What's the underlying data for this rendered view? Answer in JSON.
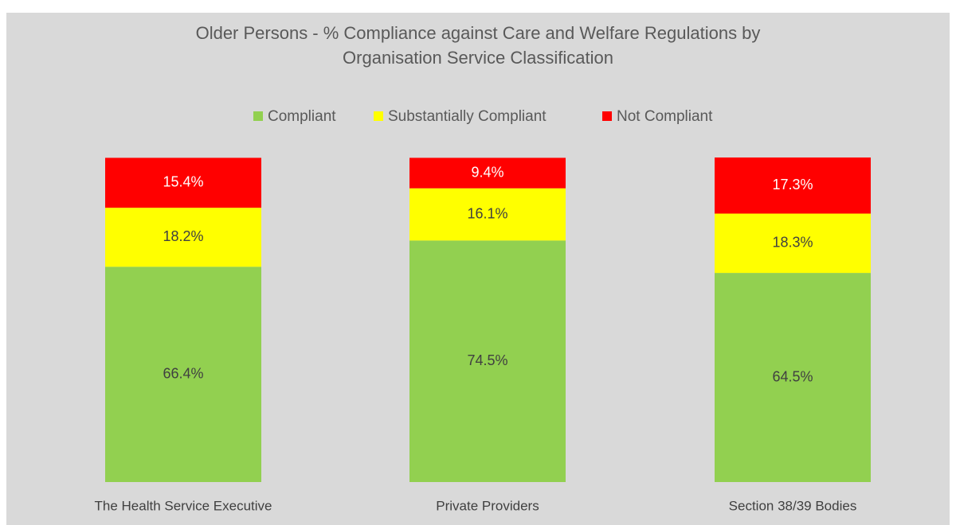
{
  "chart_data": {
    "type": "stacked_bar",
    "title": "Older Persons - % Compliance against Care and Welfare Regulations by Organisation Service Classification",
    "categories": [
      "The Health Service Executive",
      "Private Providers",
      "Section 38/39 Bodies"
    ],
    "series": [
      {
        "name": "Compliant",
        "color": "#92d050",
        "values": [
          66.4,
          74.5,
          64.5
        ],
        "value_labels": [
          "66.4%",
          "74.5%",
          "64.5%"
        ]
      },
      {
        "name": "Substantially Compliant",
        "color": "#ffff00",
        "values": [
          18.2,
          16.1,
          18.3
        ],
        "value_labels": [
          "18.2%",
          "16.1%",
          "18.3%"
        ]
      },
      {
        "name": "Not Compliant",
        "color": "#ff0000",
        "values": [
          15.4,
          9.4,
          17.3
        ],
        "value_labels": [
          "15.4%",
          "9.4%",
          "17.3%"
        ]
      }
    ],
    "legend": "top"
  }
}
